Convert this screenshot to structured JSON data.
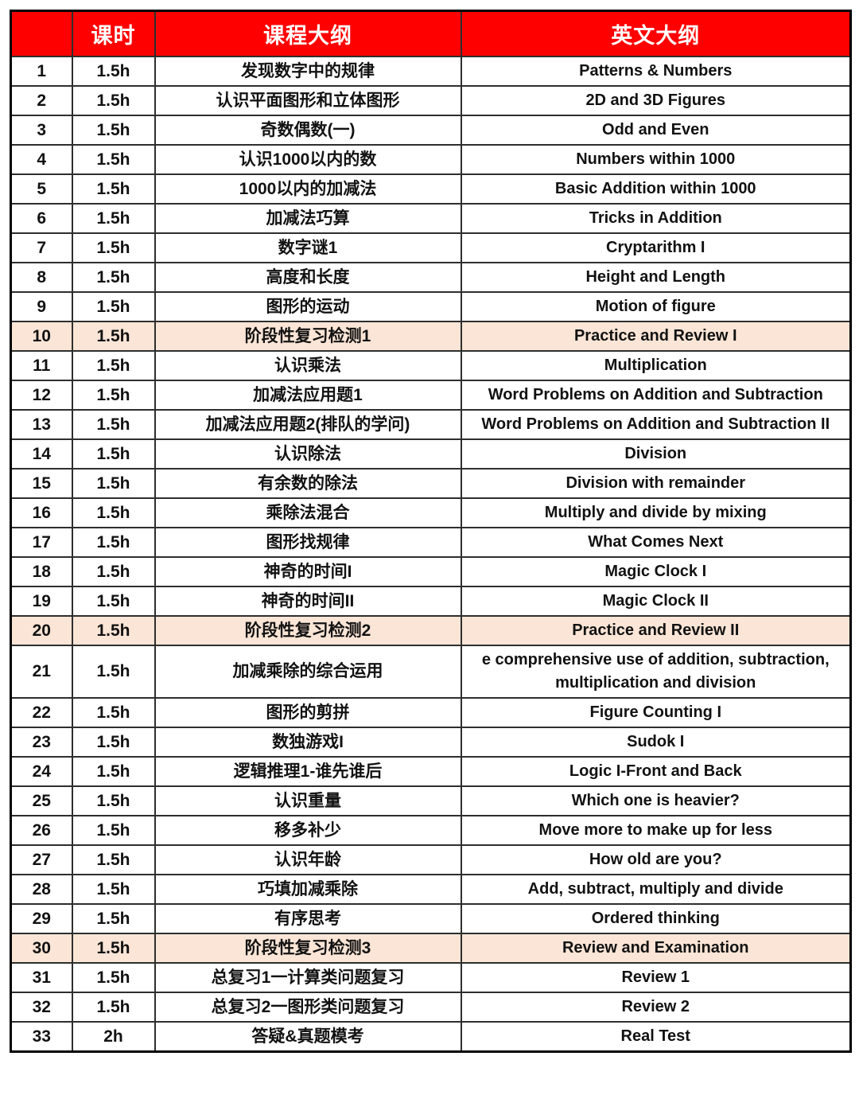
{
  "colors": {
    "header_bg": "#ff0000",
    "header_text": "#ffffff",
    "highlight_bg": "#fbe5d6",
    "border_inner": "#2e2e2e",
    "border_outer": "#000000",
    "text": "#121212",
    "page_bg": "#ffffff"
  },
  "table": {
    "headers": {
      "number": "",
      "hours": "课时",
      "cn_outline": "课程大纲",
      "en_outline": "英文大纲"
    },
    "rows": [
      {
        "no": "1",
        "hours": "1.5h",
        "cn": "发现数字中的规律",
        "en": "Patterns & Numbers",
        "highlight": false
      },
      {
        "no": "2",
        "hours": "1.5h",
        "cn": "认识平面图形和立体图形",
        "en": "2D and 3D Figures",
        "highlight": false
      },
      {
        "no": "3",
        "hours": "1.5h",
        "cn": "奇数偶数(一)",
        "en": "Odd and Even",
        "highlight": false
      },
      {
        "no": "4",
        "hours": "1.5h",
        "cn": "认识1000以内的数",
        "en": "Numbers within 1000",
        "highlight": false
      },
      {
        "no": "5",
        "hours": "1.5h",
        "cn": "1000以内的加减法",
        "en": "Basic Addition within 1000",
        "highlight": false
      },
      {
        "no": "6",
        "hours": "1.5h",
        "cn": "加减法巧算",
        "en": "Tricks in Addition",
        "highlight": false
      },
      {
        "no": "7",
        "hours": "1.5h",
        "cn": "数字谜1",
        "en": "Cryptarithm I",
        "highlight": false
      },
      {
        "no": "8",
        "hours": "1.5h",
        "cn": "高度和长度",
        "en": "Height and Length",
        "highlight": false
      },
      {
        "no": "9",
        "hours": "1.5h",
        "cn": "图形的运动",
        "en": "Motion of figure",
        "highlight": false
      },
      {
        "no": "10",
        "hours": "1.5h",
        "cn": "阶段性复习检测1",
        "en": "Practice and Review I",
        "highlight": true
      },
      {
        "no": "11",
        "hours": "1.5h",
        "cn": "认识乘法",
        "en": "Multiplication",
        "highlight": false
      },
      {
        "no": "12",
        "hours": "1.5h",
        "cn": "加减法应用题1",
        "en": "Word Problems on Addition and Subtraction",
        "highlight": false
      },
      {
        "no": "13",
        "hours": "1.5h",
        "cn": "加减法应用题2(排队的学问)",
        "en": "Word Problems on Addition and Subtraction II",
        "highlight": false
      },
      {
        "no": "14",
        "hours": "1.5h",
        "cn": "认识除法",
        "en": "Division",
        "highlight": false
      },
      {
        "no": "15",
        "hours": "1.5h",
        "cn": "有余数的除法",
        "en": "Division with remainder",
        "highlight": false
      },
      {
        "no": "16",
        "hours": "1.5h",
        "cn": "乘除法混合",
        "en": "Multiply and divide by mixing",
        "highlight": false
      },
      {
        "no": "17",
        "hours": "1.5h",
        "cn": "图形找规律",
        "en": "What Comes Next",
        "highlight": false
      },
      {
        "no": "18",
        "hours": "1.5h",
        "cn": "神奇的时间I",
        "en": "Magic Clock I",
        "highlight": false
      },
      {
        "no": "19",
        "hours": "1.5h",
        "cn": "神奇的时间II",
        "en": "Magic Clock II",
        "highlight": false
      },
      {
        "no": "20",
        "hours": "1.5h",
        "cn": "阶段性复习检测2",
        "en": "Practice and Review II",
        "highlight": true
      },
      {
        "no": "21",
        "hours": "1.5h",
        "cn": "加减乘除的综合运用",
        "en": "e comprehensive use of addition, subtraction, multiplication and division",
        "highlight": false
      },
      {
        "no": "22",
        "hours": "1.5h",
        "cn": "图形的剪拼",
        "en": "Figure Counting I",
        "highlight": false
      },
      {
        "no": "23",
        "hours": "1.5h",
        "cn": "数独游戏I",
        "en": "Sudok I",
        "highlight": false
      },
      {
        "no": "24",
        "hours": "1.5h",
        "cn": "逻辑推理1-谁先谁后",
        "en": "Logic I-Front and Back",
        "highlight": false
      },
      {
        "no": "25",
        "hours": "1.5h",
        "cn": "认识重量",
        "en": "Which one is heavier?",
        "highlight": false
      },
      {
        "no": "26",
        "hours": "1.5h",
        "cn": "移多补少",
        "en": "Move more to make up for less",
        "highlight": false
      },
      {
        "no": "27",
        "hours": "1.5h",
        "cn": "认识年龄",
        "en": "How old are you?",
        "highlight": false
      },
      {
        "no": "28",
        "hours": "1.5h",
        "cn": "巧填加减乘除",
        "en": "Add, subtract, multiply and divide",
        "highlight": false
      },
      {
        "no": "29",
        "hours": "1.5h",
        "cn": "有序思考",
        "en": "Ordered thinking",
        "highlight": false
      },
      {
        "no": "30",
        "hours": "1.5h",
        "cn": "阶段性复习检测3",
        "en": "Review and Examination",
        "highlight": true
      },
      {
        "no": "31",
        "hours": "1.5h",
        "cn": "总复习1一计算类问题复习",
        "en": "Review 1",
        "highlight": false
      },
      {
        "no": "32",
        "hours": "1.5h",
        "cn": "总复习2一图形类问题复习",
        "en": "Review 2",
        "highlight": false
      },
      {
        "no": "33",
        "hours": "2h",
        "cn": "答疑&真题模考",
        "en": "Real Test",
        "highlight": false
      }
    ]
  }
}
